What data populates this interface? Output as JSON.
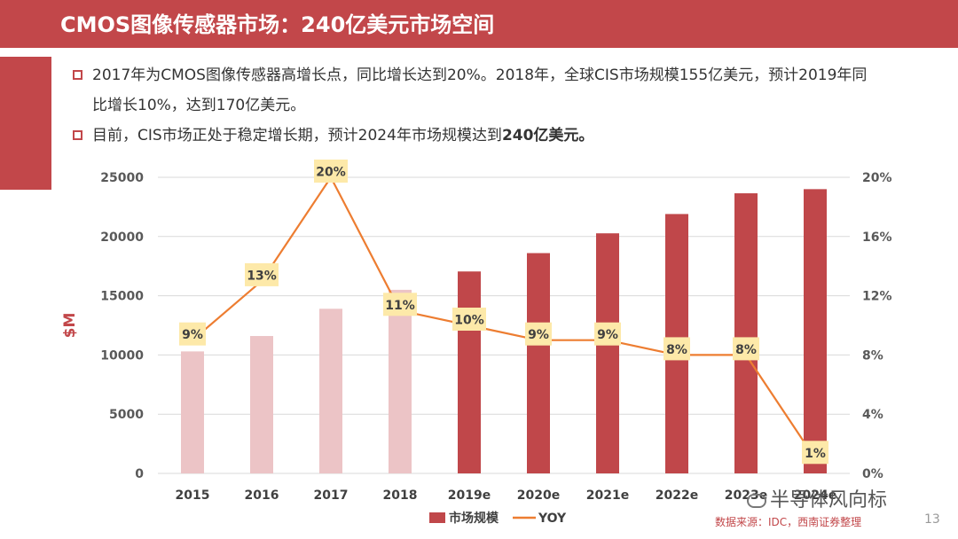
{
  "title": "CMOS图像传感器市场：240亿美元市场空间",
  "bullets": [
    {
      "text": "2017年为CMOS图像传感器高增长点，同比增长达到20%。2018年，全球CIS市场规模155亿美元，预计2019年同比增长10%，达到170亿美元。",
      "bold": ""
    },
    {
      "text": "目前，CIS市场正处于稳定增长期，预计2024年市场规模达到",
      "bold": "240亿美元。"
    }
  ],
  "chart_data": {
    "type": "bar+line",
    "categories": [
      "2015",
      "2016",
      "2017",
      "2018",
      "2019e",
      "2020e",
      "2021e",
      "2022e",
      "2023e",
      "2024e"
    ],
    "series": [
      {
        "name": "市场规模",
        "type": "bar",
        "axis": "left",
        "values": [
          10300,
          11600,
          13900,
          15500,
          17050,
          18600,
          20270,
          21900,
          23650,
          24000
        ],
        "colors": [
          "#ecc4c6",
          "#ecc4c6",
          "#ecc4c6",
          "#ecc4c6",
          "#c0474a",
          "#c0474a",
          "#c0474a",
          "#c0474a",
          "#c0474a",
          "#c0474a"
        ]
      },
      {
        "name": "YOY",
        "type": "line",
        "axis": "right",
        "values": [
          9,
          13,
          20,
          11,
          10,
          9,
          9,
          8,
          8,
          1
        ],
        "labels": [
          "9%",
          "13%",
          "20%",
          "11%",
          "10%",
          "9%",
          "9%",
          "8%",
          "8%",
          "1%"
        ],
        "color": "#ed7d31"
      }
    ],
    "ylabel": "$M",
    "ylim": [
      0,
      25000
    ],
    "yticks": [
      0,
      5000,
      10000,
      15000,
      20000,
      25000
    ],
    "y2lim": [
      0,
      20
    ],
    "y2ticks": [
      "0%",
      "4%",
      "8%",
      "12%",
      "16%",
      "20%"
    ],
    "legend": [
      {
        "label": "市场规模",
        "color": "#c0474a"
      },
      {
        "label": "YOY",
        "color": "#ed7d31"
      }
    ],
    "legend_position": "bottom"
  },
  "watermark": "半导体风向标",
  "source": "数据来源：IDC，西南证券整理",
  "page_number": "13"
}
